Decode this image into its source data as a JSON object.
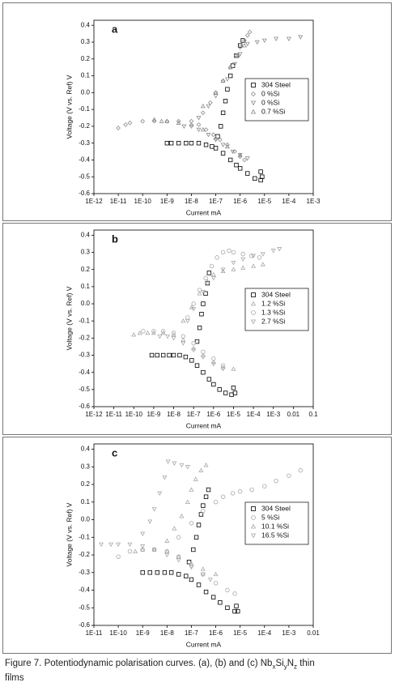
{
  "chart_data": [
    {
      "type": "scatter",
      "panel_label": "a",
      "x_label": "Current mA",
      "y_label": "Voltage (V vs. Ref) V",
      "xscale": "log",
      "xlim": [
        1e-12,
        0.001
      ],
      "ylim": [
        -0.6,
        0.43
      ],
      "grid": false,
      "legend": "right",
      "xticks": [
        {
          "value": 1e-12,
          "label": "1E-12"
        },
        {
          "value": 1e-11,
          "label": "1E-11"
        },
        {
          "value": 1e-10,
          "label": "1E-10"
        },
        {
          "value": 1e-09,
          "label": "1E-9"
        },
        {
          "value": 1e-08,
          "label": "1E-8"
        },
        {
          "value": 1e-07,
          "label": "1E-7"
        },
        {
          "value": 1e-06,
          "label": "1E-6"
        },
        {
          "value": 1e-05,
          "label": "1E-5"
        },
        {
          "value": 0.0001,
          "label": "1E-4"
        },
        {
          "value": 0.001,
          "label": "1E-3"
        }
      ],
      "yticks": [
        0.4,
        0.3,
        0.2,
        0.1,
        {
          "value": 0,
          "label": "0.0"
        },
        -0.1,
        -0.2,
        -0.3,
        -0.4,
        -0.5,
        -0.6
      ],
      "series": [
        {
          "name": "304 Steel",
          "color": "#000000",
          "marker": "square",
          "x": [
            1e-09,
            1.5e-09,
            3e-09,
            6e-09,
            1e-08,
            2e-08,
            4e-08,
            7e-08,
            1e-07,
            2e-07,
            4e-07,
            7e-07,
            1e-06,
            2e-06,
            4e-06,
            7e-06,
            8e-06,
            7e-06,
            1.2e-07,
            1.6e-07,
            2e-07,
            2.5e-07,
            3e-07,
            4e-07,
            5e-07,
            7e-07,
            1e-06,
            1.3e-06
          ],
          "values": [
            -0.3,
            -0.3,
            -0.3,
            -0.3,
            -0.3,
            -0.3,
            -0.31,
            -0.32,
            -0.33,
            -0.36,
            -0.4,
            -0.43,
            -0.45,
            -0.48,
            -0.51,
            -0.52,
            -0.5,
            -0.47,
            -0.26,
            -0.2,
            -0.12,
            -0.05,
            0.02,
            0.1,
            0.16,
            0.22,
            0.28,
            0.31
          ]
        },
        {
          "name": "0 %Si",
          "color": "#8c8c8c",
          "marker": "diamond",
          "x": [
            1e-11,
            2e-11,
            3e-11,
            1e-10,
            3e-10,
            1e-09,
            3e-09,
            1e-08,
            2e-08,
            4e-08,
            8e-08,
            1.5e-07,
            3e-07,
            6e-07,
            1e-06,
            1.5e-06,
            3e-08,
            6e-08,
            1e-07,
            2e-07,
            4e-07,
            7e-07,
            1e-06,
            1.5e-06,
            2e-06,
            2.5e-06
          ],
          "values": [
            -0.21,
            -0.19,
            -0.18,
            -0.17,
            -0.17,
            -0.17,
            -0.17,
            -0.17,
            -0.19,
            -0.22,
            -0.25,
            -0.28,
            -0.31,
            -0.35,
            -0.38,
            -0.4,
            -0.12,
            -0.06,
            0.0,
            0.07,
            0.15,
            0.22,
            0.27,
            0.31,
            0.34,
            0.36
          ]
        },
        {
          "name": "0 %Si",
          "color": "#8c8c8c",
          "marker": "triangle-down",
          "x": [
            5e-09,
            1e-08,
            2e-08,
            5e-08,
            1e-07,
            2e-07,
            5e-07,
            1e-06,
            2e-06,
            2e-08,
            5e-08,
            1e-07,
            3e-07,
            6e-07,
            1e-06,
            2e-06,
            5e-06,
            1e-05,
            3e-05,
            0.0001,
            0.0003
          ],
          "values": [
            -0.2,
            -0.2,
            -0.22,
            -0.25,
            -0.28,
            -0.31,
            -0.35,
            -0.37,
            -0.39,
            -0.15,
            -0.08,
            -0.02,
            0.08,
            0.17,
            0.23,
            0.29,
            0.3,
            0.31,
            0.32,
            0.32,
            0.33
          ]
        },
        {
          "name": "0.7 %Si",
          "color": "#8c8c8c",
          "marker": "triangle-up",
          "x": [
            3e-10,
            6e-10,
            1e-09,
            3e-09,
            1e-08,
            3e-08,
            1e-07,
            3e-07,
            1e-06,
            3e-08,
            1e-07,
            2e-07,
            4e-07,
            8e-07,
            1.5e-06
          ],
          "values": [
            -0.16,
            -0.17,
            -0.17,
            -0.18,
            -0.19,
            -0.22,
            -0.27,
            -0.32,
            -0.37,
            -0.08,
            0.0,
            0.07,
            0.15,
            0.22,
            0.28
          ]
        }
      ]
    },
    {
      "type": "scatter",
      "panel_label": "b",
      "x_label": "Current mA",
      "y_label": "Voltage (V vs. Ref) V",
      "xscale": "log",
      "xlim": [
        1e-12,
        0.1
      ],
      "ylim": [
        -0.6,
        0.43
      ],
      "grid": false,
      "legend": "right",
      "xticks": [
        {
          "value": 1e-12,
          "label": "1E-12"
        },
        {
          "value": 1e-11,
          "label": "1E-11"
        },
        {
          "value": 1e-10,
          "label": "1E-10"
        },
        {
          "value": 1e-09,
          "label": "1E-9"
        },
        {
          "value": 1e-08,
          "label": "1E-8"
        },
        {
          "value": 1e-07,
          "label": "1E-7"
        },
        {
          "value": 1e-06,
          "label": "1E-6"
        },
        {
          "value": 1e-05,
          "label": "1E-5"
        },
        {
          "value": 0.0001,
          "label": "1E-4"
        },
        {
          "value": 0.001,
          "label": "1E-3"
        },
        0.01,
        0.1
      ],
      "yticks": [
        0.4,
        0.3,
        0.2,
        0.1,
        {
          "value": 0,
          "label": "0.0"
        },
        -0.1,
        -0.2,
        -0.3,
        -0.4,
        -0.5,
        -0.6
      ],
      "series": [
        {
          "name": "304 Steel",
          "color": "#000000",
          "marker": "square",
          "x": [
            8e-10,
            1.5e-09,
            3e-09,
            6e-09,
            1e-08,
            2e-08,
            4e-08,
            8e-08,
            1.5e-07,
            3e-07,
            6e-07,
            1e-06,
            2e-06,
            4e-06,
            8e-06,
            1.2e-05,
            1e-05,
            1.5e-07,
            2e-07,
            2.5e-07,
            3e-07,
            4e-07,
            5e-07,
            6e-07
          ],
          "values": [
            -0.3,
            -0.3,
            -0.3,
            -0.3,
            -0.3,
            -0.3,
            -0.31,
            -0.33,
            -0.36,
            -0.4,
            -0.44,
            -0.47,
            -0.5,
            -0.52,
            -0.53,
            -0.52,
            -0.49,
            -0.22,
            -0.14,
            -0.06,
            0.0,
            0.06,
            0.12,
            0.18
          ]
        },
        {
          "name": "1.2 %Si",
          "color": "#a8a8a8",
          "marker": "triangle-up",
          "x": [
            1e-10,
            2e-10,
            5e-10,
            1e-09,
            3e-09,
            1e-08,
            3e-08,
            1e-07,
            3e-07,
            1e-06,
            3e-06,
            1e-05,
            3e-08,
            8e-08,
            2e-07,
            5e-07,
            1e-06,
            3e-06,
            1e-05,
            3e-05,
            0.0001,
            0.0003
          ],
          "values": [
            -0.18,
            -0.17,
            -0.17,
            -0.17,
            -0.17,
            -0.18,
            -0.21,
            -0.26,
            -0.3,
            -0.34,
            -0.37,
            -0.38,
            -0.1,
            -0.02,
            0.06,
            0.13,
            0.17,
            0.19,
            0.2,
            0.21,
            0.22,
            0.23
          ]
        },
        {
          "name": "1.3 %Si",
          "color": "#a8a8a8",
          "marker": "circle",
          "x": [
            3e-10,
            1e-09,
            3e-09,
            1e-08,
            3e-08,
            1e-07,
            3e-07,
            1e-06,
            3e-06,
            5e-08,
            1e-07,
            2e-07,
            4e-07,
            8e-07,
            1.5e-06,
            3e-06,
            6e-06,
            1e-05,
            3e-05,
            8e-05,
            0.0002
          ],
          "values": [
            -0.16,
            -0.16,
            -0.16,
            -0.17,
            -0.19,
            -0.23,
            -0.28,
            -0.32,
            -0.36,
            -0.08,
            0.0,
            0.08,
            0.15,
            0.22,
            0.27,
            0.3,
            0.31,
            0.3,
            0.29,
            0.28,
            0.27
          ]
        },
        {
          "name": "2.7 %Si",
          "color": "#a8a8a8",
          "marker": "triangle-down",
          "x": [
            2e-09,
            5e-09,
            1e-08,
            3e-08,
            1e-07,
            3e-07,
            1e-06,
            3e-06,
            5e-08,
            1e-07,
            3e-07,
            1e-06,
            3e-06,
            1e-05,
            3e-05,
            0.0001,
            0.0003,
            0.001,
            0.002
          ],
          "values": [
            -0.19,
            -0.19,
            -0.2,
            -0.23,
            -0.27,
            -0.31,
            -0.35,
            -0.38,
            -0.1,
            -0.03,
            0.07,
            0.15,
            0.2,
            0.24,
            0.26,
            0.28,
            0.29,
            0.31,
            0.32
          ]
        }
      ]
    },
    {
      "type": "scatter",
      "panel_label": "c",
      "x_label": "Current mA",
      "y_label": "Voltage (V vs. Ref) V",
      "xscale": "log",
      "xlim": [
        1e-11,
        0.01
      ],
      "ylim": [
        -0.6,
        0.43
      ],
      "grid": false,
      "legend": "right",
      "xticks": [
        {
          "value": 1e-11,
          "label": "1E-11"
        },
        {
          "value": 1e-10,
          "label": "1E-10"
        },
        {
          "value": 1e-09,
          "label": "1E-9"
        },
        {
          "value": 1e-08,
          "label": "1E-8"
        },
        {
          "value": 1e-07,
          "label": "1E-7"
        },
        {
          "value": 1e-06,
          "label": "1E-6"
        },
        {
          "value": 1e-05,
          "label": "1E-5"
        },
        {
          "value": 0.0001,
          "label": "1E-4"
        },
        {
          "value": 0.001,
          "label": "1E-3"
        },
        0.01
      ],
      "yticks": [
        0.4,
        0.3,
        0.2,
        0.1,
        {
          "value": 0,
          "label": "0.0"
        },
        -0.1,
        -0.2,
        -0.3,
        -0.4,
        -0.5,
        -0.6
      ],
      "series": [
        {
          "name": "304 Steel",
          "color": "#000000",
          "marker": "square",
          "x": [
            1e-09,
            2e-09,
            4e-09,
            8e-09,
            1.5e-08,
            3e-08,
            6e-08,
            1e-07,
            2e-07,
            4e-07,
            8e-07,
            1.5e-06,
            3e-06,
            6e-06,
            8e-06,
            7e-06,
            8e-08,
            1.2e-07,
            1.6e-07,
            2e-07,
            2.5e-07,
            3e-07,
            4e-07,
            5e-07
          ],
          "values": [
            -0.3,
            -0.3,
            -0.3,
            -0.3,
            -0.3,
            -0.31,
            -0.32,
            -0.34,
            -0.37,
            -0.41,
            -0.44,
            -0.47,
            -0.5,
            -0.52,
            -0.52,
            -0.49,
            -0.24,
            -0.17,
            -0.1,
            -0.03,
            0.03,
            0.08,
            0.13,
            0.17
          ]
        },
        {
          "name": "5 %Si",
          "color": "#a8a8a8",
          "marker": "circle",
          "x": [
            1e-10,
            3e-10,
            1e-09,
            3e-09,
            1e-08,
            3e-08,
            1e-07,
            3e-07,
            1e-06,
            3e-06,
            6e-06,
            3e-08,
            1e-07,
            3e-07,
            1e-06,
            2e-06,
            5e-06,
            1e-05,
            3e-05,
            0.0001,
            0.0003,
            0.001,
            0.003
          ],
          "values": [
            -0.21,
            -0.18,
            -0.17,
            -0.17,
            -0.18,
            -0.21,
            -0.26,
            -0.31,
            -0.36,
            -0.4,
            -0.42,
            -0.1,
            -0.02,
            0.05,
            0.1,
            0.13,
            0.15,
            0.16,
            0.17,
            0.19,
            0.22,
            0.25,
            0.28
          ]
        },
        {
          "name": "10.1 %Si",
          "color": "#a8a8a8",
          "marker": "triangle-up",
          "x": [
            5e-10,
            1e-09,
            3e-09,
            1e-08,
            3e-08,
            1e-07,
            3e-07,
            1e-06,
            1e-08,
            2e-08,
            4e-08,
            7e-08,
            1e-07,
            1.5e-07,
            2.5e-07,
            4e-07
          ],
          "values": [
            -0.18,
            -0.17,
            -0.17,
            -0.18,
            -0.21,
            -0.25,
            -0.28,
            -0.31,
            -0.12,
            -0.05,
            0.02,
            0.1,
            0.17,
            0.23,
            0.28,
            0.31
          ]
        },
        {
          "name": "16.5 %Si",
          "color": "#a8a8a8",
          "marker": "triangle-down",
          "x": [
            2e-11,
            5e-11,
            1e-10,
            3e-10,
            1e-09,
            3e-09,
            1e-08,
            3e-08,
            1e-07,
            3e-07,
            6e-07,
            1e-09,
            2e-09,
            3e-09,
            5e-09,
            8e-09,
            1.1e-08,
            2e-08,
            4e-08,
            7e-08
          ],
          "values": [
            -0.14,
            -0.14,
            -0.14,
            -0.14,
            -0.15,
            -0.17,
            -0.2,
            -0.23,
            -0.27,
            -0.31,
            -0.34,
            -0.08,
            -0.01,
            0.06,
            0.15,
            0.24,
            0.33,
            0.32,
            0.31,
            0.3
          ]
        }
      ]
    }
  ],
  "caption": [
    "Figure 7. Potentiodynamic polarisation curves. (a), (b) and (c) Nb",
    "x",
    "Si",
    "y",
    "N",
    "z",
    " thin",
    "films"
  ]
}
